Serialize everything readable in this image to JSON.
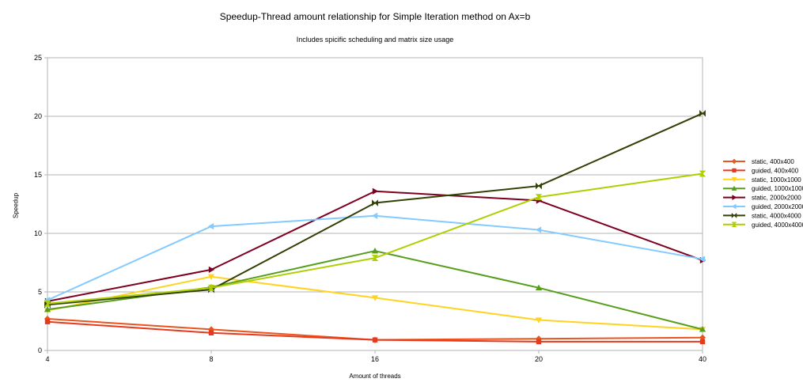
{
  "chart_data": {
    "type": "line",
    "title": "Speedup-Thread amount relationship for Simple Iteration method on Ax=b",
    "subtitle": "Includes spicific scheduling and matrix size usage",
    "xlabel": "Amount of threads",
    "ylabel": "Speedup",
    "categories": [
      "4",
      "8",
      "16",
      "20",
      "40"
    ],
    "ylim": [
      0,
      25
    ],
    "yticks": [
      0,
      5,
      10,
      15,
      20,
      25
    ],
    "grid": true,
    "legend_position": "right",
    "series": [
      {
        "name": "static, 400x400",
        "color": "#e8551d",
        "marker": "diamond",
        "values": [
          2.7,
          1.8,
          0.9,
          1.0,
          1.1
        ]
      },
      {
        "name": "guided, 400x400",
        "color": "#e8391d",
        "marker": "square",
        "values": [
          2.45,
          1.5,
          0.9,
          0.75,
          0.75
        ]
      },
      {
        "name": "static, 1000x1000",
        "color": "#ffd320",
        "marker": "triangle-down",
        "values": [
          3.4,
          6.3,
          4.5,
          2.6,
          1.8
        ]
      },
      {
        "name": "guided, 1000x1000",
        "color": "#579d1c",
        "marker": "triangle-up",
        "values": [
          3.5,
          5.4,
          8.5,
          5.35,
          1.8
        ]
      },
      {
        "name": "static, 2000x2000",
        "color": "#7e0021",
        "marker": "triangle-right",
        "values": [
          4.2,
          6.9,
          13.6,
          12.8,
          7.7
        ]
      },
      {
        "name": "guided, 2000x2000",
        "color": "#83caff",
        "marker": "triangle-left",
        "values": [
          4.3,
          10.6,
          11.5,
          10.3,
          7.8
        ]
      },
      {
        "name": "static, 4000x4000",
        "color": "#314004",
        "marker": "bowtie",
        "values": [
          3.9,
          5.2,
          12.6,
          14.05,
          20.25
        ]
      },
      {
        "name": "guided, 4000x4000",
        "color": "#aecf00",
        "marker": "hourglass",
        "values": [
          4.0,
          5.35,
          7.9,
          13.1,
          15.1
        ]
      }
    ]
  }
}
